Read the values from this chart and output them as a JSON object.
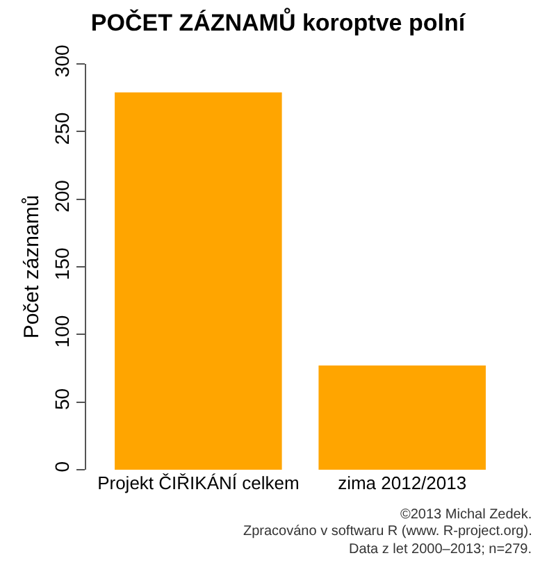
{
  "chart_data": {
    "type": "bar",
    "title": "POČET ZÁZNAMŮ koroptve polní",
    "ylabel": "Počet záznamů",
    "categories": [
      "Projekt ČIŘIKÁNÍ celkem",
      "zima 2012/2013"
    ],
    "values": [
      279,
      77
    ],
    "color": "#ffa500",
    "ylim": [
      0,
      300
    ],
    "yticks": [
      0,
      50,
      100,
      150,
      200,
      250,
      300
    ],
    "annotations": [
      "©2013 Michal Zedek.",
      "Zpracováno v softwaru R (www. R-project.org).",
      "Data z let 2000–2013; n=279."
    ]
  }
}
